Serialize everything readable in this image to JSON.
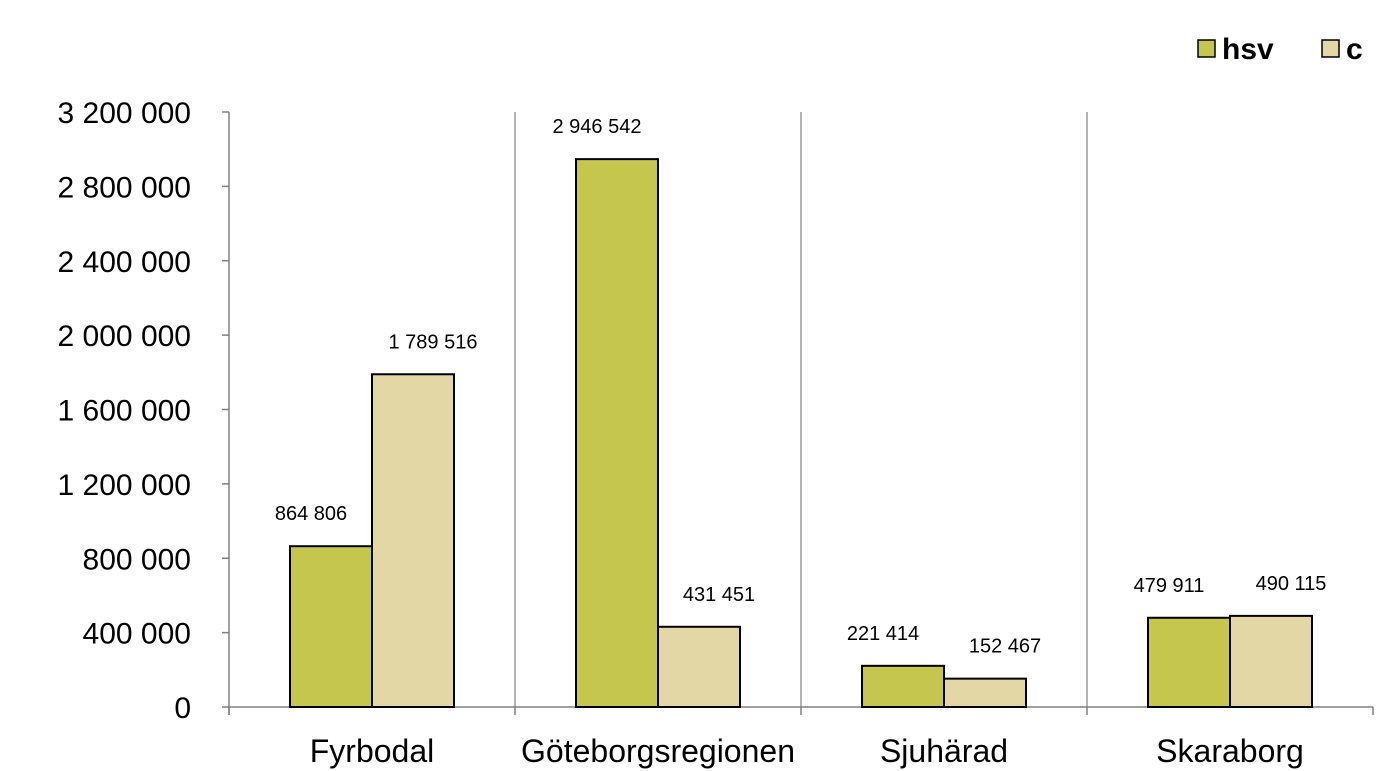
{
  "chart_data": {
    "type": "bar",
    "categories": [
      "Fyrbodal",
      "Göteborgsregionen",
      "Sjuhärad",
      "Skaraborg"
    ],
    "series": [
      {
        "name": "hsv",
        "color": "#c5c64d",
        "values": [
          864806,
          2946542,
          221414,
          479911
        ],
        "labels": [
          "864 806",
          "2 946 542",
          "221 414",
          "479 911"
        ]
      },
      {
        "name": "c",
        "color": "#e2d7a5",
        "values": [
          1789516,
          431451,
          152467,
          490115
        ],
        "labels": [
          "1 789 516",
          "431 451",
          "152 467",
          "490 115"
        ]
      }
    ],
    "ylim": [
      0,
      3200000
    ],
    "yticks": [
      0,
      400000,
      800000,
      1200000,
      1600000,
      2000000,
      2400000,
      2800000,
      3200000
    ],
    "ytick_labels": [
      "0",
      "400 000",
      "800 000",
      "1 200 000",
      "1 600 000",
      "2 000 000",
      "2 400 000",
      "2 800 000",
      "3 200 000"
    ],
    "legend_position": "top-right",
    "grid": false,
    "category_separators": true,
    "title": "",
    "xlabel": "",
    "ylabel": ""
  }
}
